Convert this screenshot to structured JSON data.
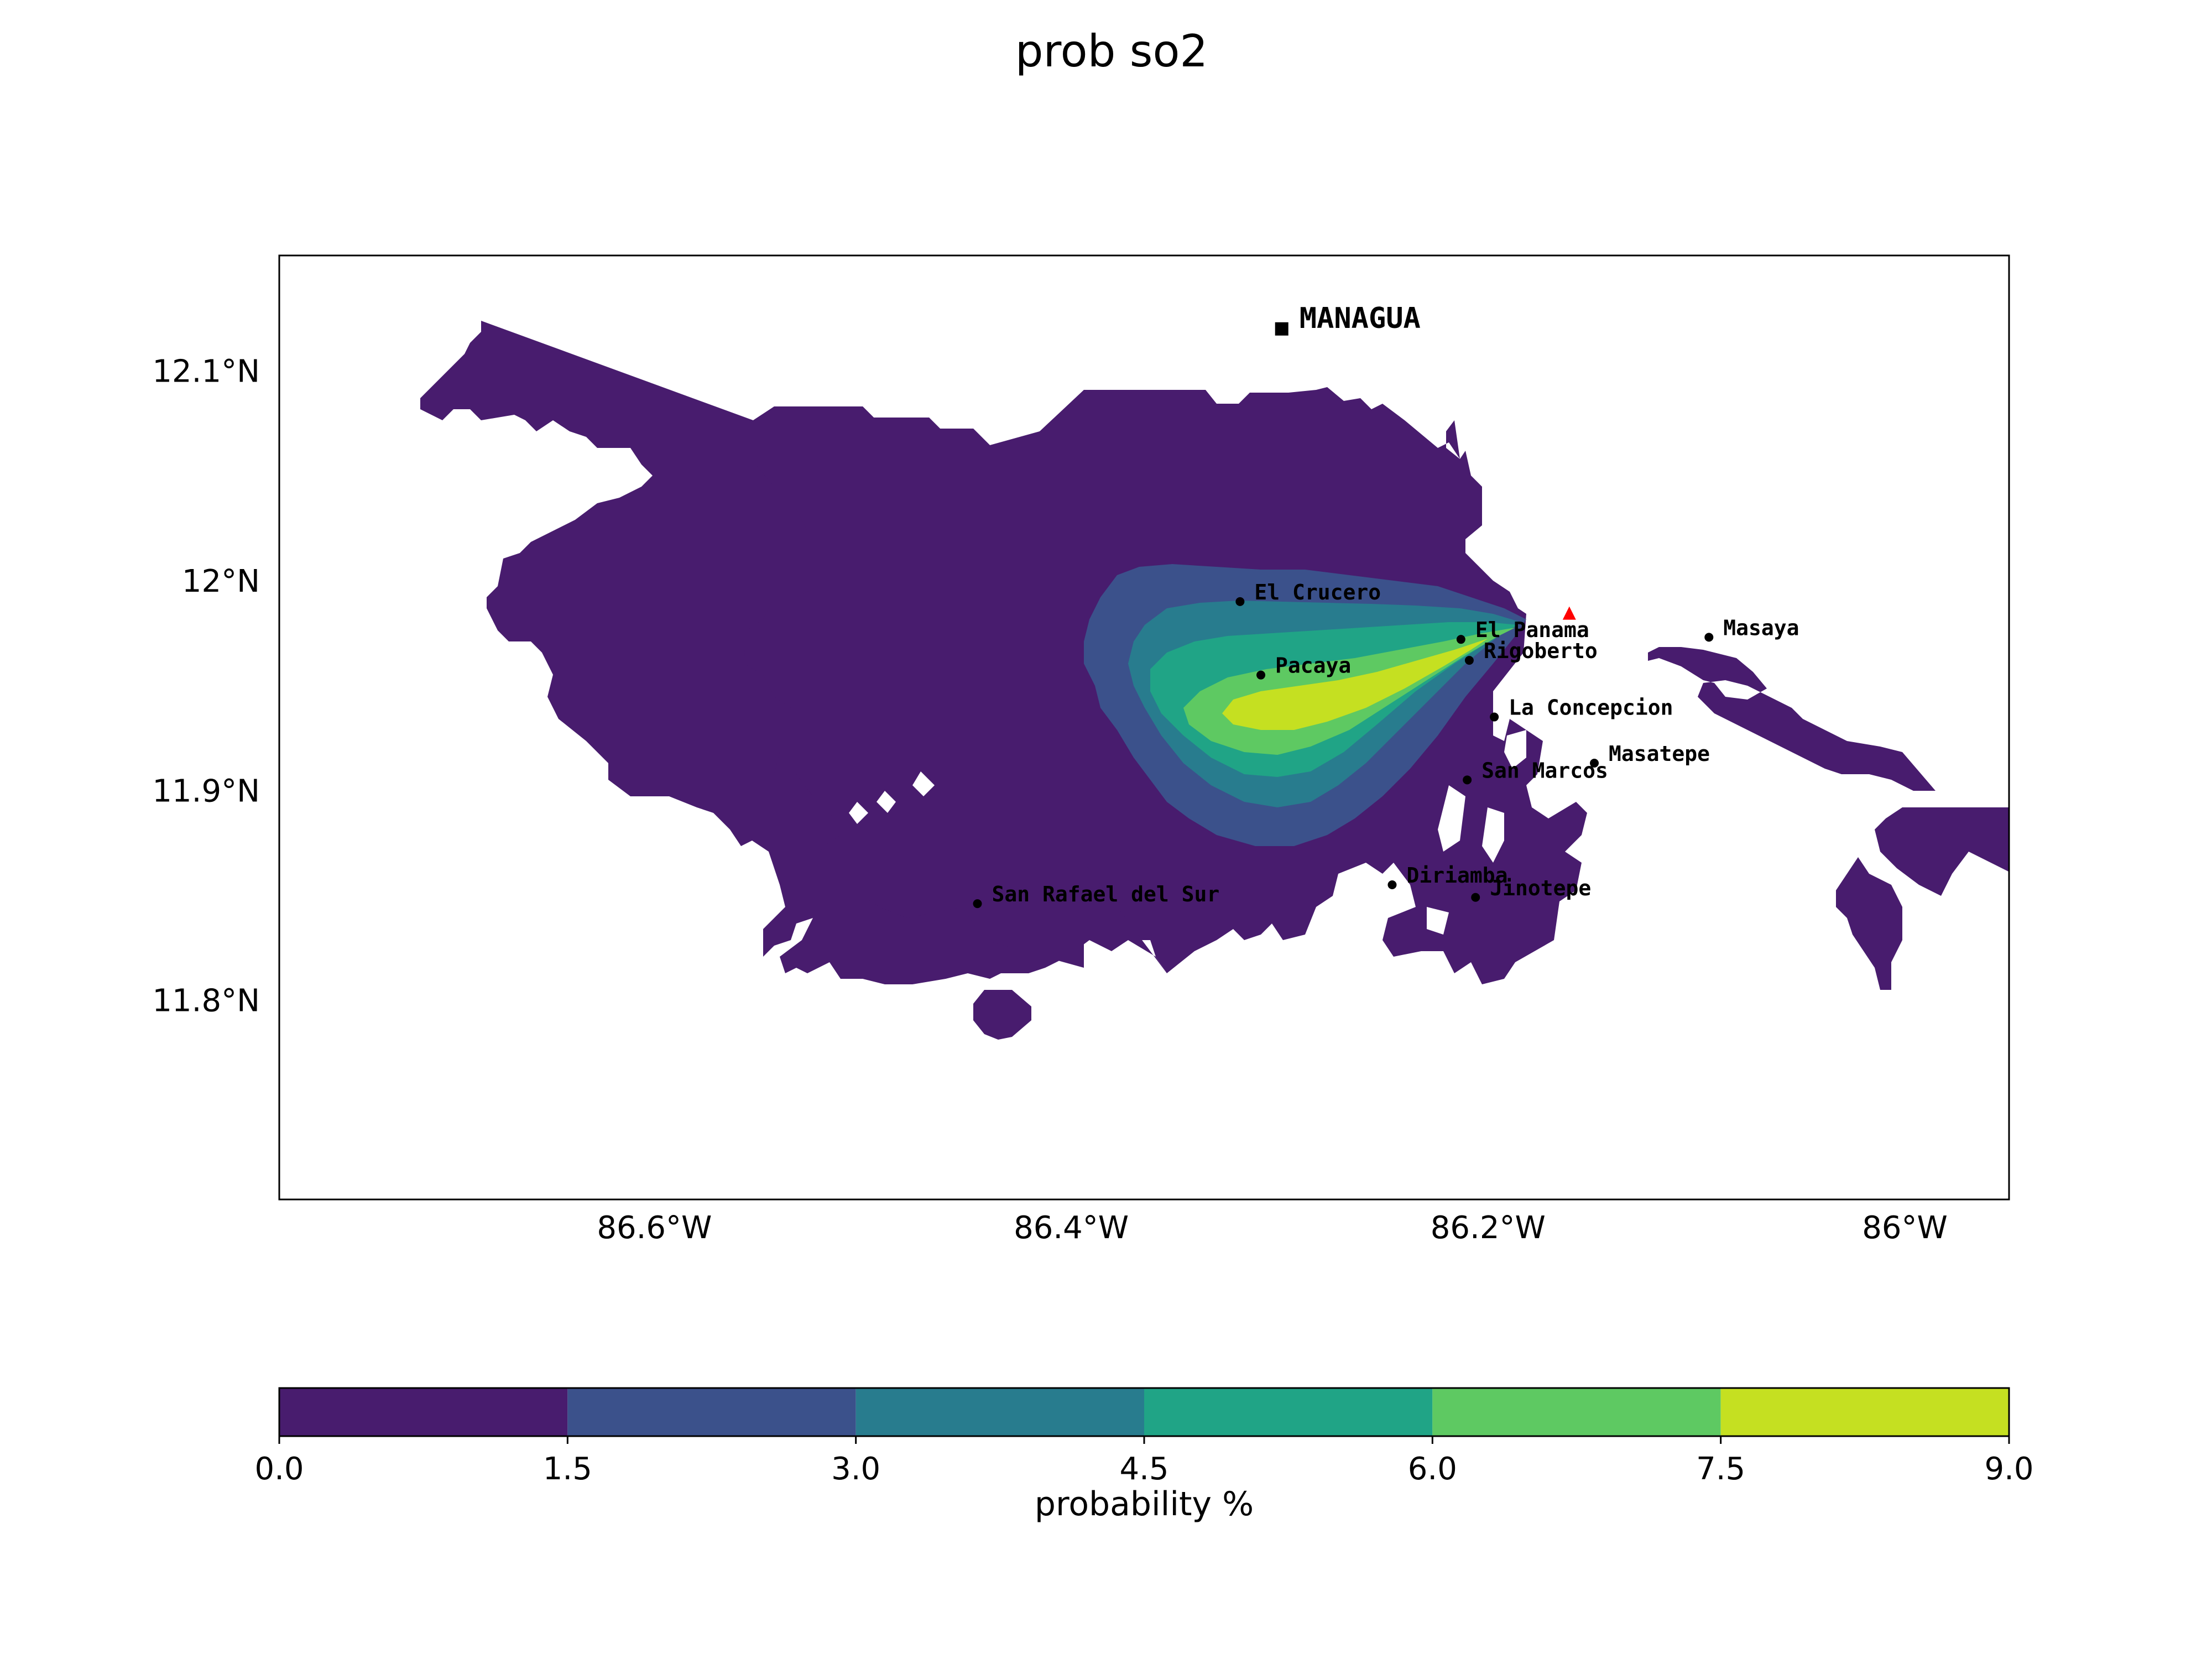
{
  "title": "prob so2",
  "map": {
    "lon_range": [
      -86.78,
      -85.95
    ],
    "lat_range": [
      11.705,
      12.155
    ],
    "lon_ticks": [
      {
        "value": -86.6,
        "label": "86.6°W"
      },
      {
        "value": -86.4,
        "label": "86.4°W"
      },
      {
        "value": -86.2,
        "label": "86.2°W"
      },
      {
        "value": -86.0,
        "label": "86°W"
      }
    ],
    "lat_ticks": [
      {
        "value": 12.1,
        "label": "12.1°N"
      },
      {
        "value": 12.0,
        "label": "12°N"
      },
      {
        "value": 11.9,
        "label": "11.9°N"
      },
      {
        "value": 11.8,
        "label": "11.8°N"
      }
    ],
    "capital": {
      "name": "MANAGUA",
      "lon": -86.299,
      "lat": 12.12
    },
    "volcano": {
      "name": "Masaya volcano",
      "lon": -86.161,
      "lat": 11.984,
      "color": "#ff0000"
    },
    "cities": [
      {
        "name": "El Crucero",
        "lon": -86.319,
        "lat": 11.99
      },
      {
        "name": "El Panama",
        "lon": -86.213,
        "lat": 11.972
      },
      {
        "name": "Rigoberto",
        "lon": -86.209,
        "lat": 11.962
      },
      {
        "name": "Masaya",
        "lon": -86.094,
        "lat": 11.973
      },
      {
        "name": "Pacaya",
        "lon": -86.309,
        "lat": 11.955
      },
      {
        "name": "La Concepcion",
        "lon": -86.197,
        "lat": 11.935
      },
      {
        "name": "Masatepe",
        "lon": -86.149,
        "lat": 11.913
      },
      {
        "name": "San Marcos",
        "lon": -86.21,
        "lat": 11.905
      },
      {
        "name": "Diriamba",
        "lon": -86.246,
        "lat": 11.855
      },
      {
        "name": "Jinotepe",
        "lon": -86.206,
        "lat": 11.849
      },
      {
        "name": "San Rafael del Sur",
        "lon": -86.445,
        "lat": 11.846
      }
    ]
  },
  "chart_data": {
    "type": "contourf",
    "variable": "prob so2",
    "levels": [
      0.0,
      1.5,
      3.0,
      4.5,
      6.0,
      7.5,
      9.0
    ],
    "colors": [
      "#481c6e",
      "#3b518b",
      "#287c8e",
      "#20a486",
      "#5ec962",
      "#c5e021"
    ],
    "plume_source": {
      "lon": -86.17,
      "lat": 11.975
    },
    "max_probability_approx": 8.0,
    "nodata_regions": [
      "white gaps east of the volcano and south of San Marcos"
    ]
  },
  "colorbar": {
    "ticks": [
      "0.0",
      "1.5",
      "3.0",
      "4.5",
      "6.0",
      "7.5",
      "9.0"
    ],
    "label": "probability %"
  }
}
